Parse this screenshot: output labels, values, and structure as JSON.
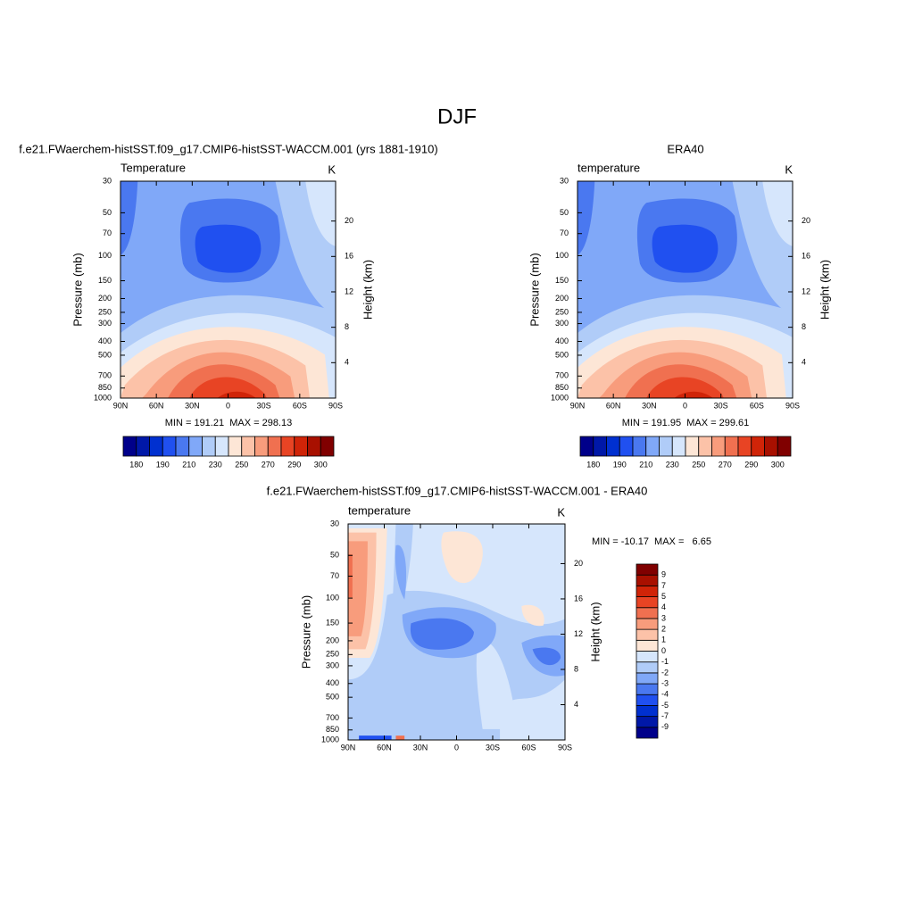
{
  "title": "DJF",
  "chart_data": [
    {
      "type": "contour",
      "title": "f.e21.FWaerchem-histSST.f09_g17.CMIP6-histSST-WACCM.001 (yrs 1881-1910)",
      "left_label": "Temperature",
      "right_label": "K",
      "ylabel": "Pressure (mb)",
      "y2label": "Height (km)",
      "stats": "MIN = 191.21  MAX = 298.13",
      "xlim": [
        90,
        -90
      ],
      "xticks": [
        {
          "value": 90,
          "label": "90N"
        },
        {
          "value": 60,
          "label": "60N"
        },
        {
          "value": 30,
          "label": "30N"
        },
        0,
        {
          "value": -30,
          "label": "30S"
        },
        {
          "value": -60,
          "label": "60S"
        },
        {
          "value": -90,
          "label": "90S"
        }
      ],
      "ylim": [
        1000,
        30
      ],
      "ylog": true,
      "yticks": [
        30,
        50,
        70,
        100,
        150,
        200,
        250,
        300,
        400,
        500,
        700,
        850,
        1000
      ],
      "y2lim": [
        0,
        24.5
      ],
      "y2ticks": [
        4,
        8,
        12,
        16,
        20
      ],
      "colorbar": {
        "orientation": "horizontal",
        "levels": [
          180,
          190,
          210,
          230,
          250,
          270,
          290,
          300
        ],
        "colors": [
          "#00008a",
          "#0018a8",
          "#0030d0",
          "#2050f0",
          "#4a78f0",
          "#80a8f8",
          "#b0ccf8",
          "#d6e6fc",
          "#fde6d6",
          "#fcc2a8",
          "#f89c7c",
          "#f07050",
          "#e84424",
          "#d02408",
          "#a81000",
          "#800000"
        ]
      }
    },
    {
      "type": "contour",
      "title": "ERA40",
      "left_label": "temperature",
      "right_label": "K",
      "ylabel": "Pressure (mb)",
      "y2label": "Height (km)",
      "stats": "MIN = 191.95  MAX = 299.61",
      "xlim": [
        90,
        -90
      ],
      "xticks": [
        {
          "value": 90,
          "label": "90N"
        },
        {
          "value": 60,
          "label": "60N"
        },
        {
          "value": 30,
          "label": "30N"
        },
        0,
        {
          "value": -30,
          "label": "30S"
        },
        {
          "value": -60,
          "label": "60S"
        },
        {
          "value": -90,
          "label": "90S"
        }
      ],
      "ylim": [
        1000,
        30
      ],
      "ylog": true,
      "yticks": [
        30,
        50,
        70,
        100,
        150,
        200,
        250,
        300,
        400,
        500,
        700,
        850,
        1000
      ],
      "y2lim": [
        0,
        24.5
      ],
      "y2ticks": [
        4,
        8,
        12,
        16,
        20
      ],
      "colorbar": {
        "orientation": "horizontal",
        "levels": [
          180,
          190,
          210,
          230,
          250,
          270,
          290,
          300
        ],
        "colors": [
          "#00008a",
          "#0018a8",
          "#0030d0",
          "#2050f0",
          "#4a78f0",
          "#80a8f8",
          "#b0ccf8",
          "#d6e6fc",
          "#fde6d6",
          "#fcc2a8",
          "#f89c7c",
          "#f07050",
          "#e84424",
          "#d02408",
          "#a81000",
          "#800000"
        ]
      }
    },
    {
      "type": "contour",
      "title": "f.e21.FWaerchem-histSST.f09_g17.CMIP6-histSST-WACCM.001 - ERA40",
      "left_label": "temperature",
      "right_label": "K",
      "ylabel": "Pressure (mb)",
      "y2label": "Height (km)",
      "stats": "MIN = -10.17  MAX =   6.65",
      "xlim": [
        90,
        -90
      ],
      "xticks": [
        {
          "value": 90,
          "label": "90N"
        },
        {
          "value": 60,
          "label": "60N"
        },
        {
          "value": 30,
          "label": "30N"
        },
        0,
        {
          "value": -30,
          "label": "30S"
        },
        {
          "value": -60,
          "label": "60S"
        },
        {
          "value": -90,
          "label": "90S"
        }
      ],
      "ylim": [
        1000,
        30
      ],
      "ylog": true,
      "yticks": [
        30,
        50,
        70,
        100,
        150,
        200,
        250,
        300,
        400,
        500,
        700,
        850,
        1000
      ],
      "y2lim": [
        0,
        24.5
      ],
      "y2ticks": [
        4,
        8,
        12,
        16,
        20
      ],
      "colorbar": {
        "orientation": "vertical",
        "levels": [
          -9,
          -7,
          -5,
          -4,
          -3,
          -2,
          -1,
          0,
          1,
          2,
          3,
          4,
          5,
          7,
          9
        ],
        "colors": [
          "#00008a",
          "#0018a8",
          "#0030d0",
          "#2050f0",
          "#4a78f0",
          "#80a8f8",
          "#b0ccf8",
          "#d6e6fc",
          "#fde6d6",
          "#fcc2a8",
          "#f89c7c",
          "#f07050",
          "#e84424",
          "#d02408",
          "#a81000",
          "#800000"
        ]
      }
    }
  ]
}
